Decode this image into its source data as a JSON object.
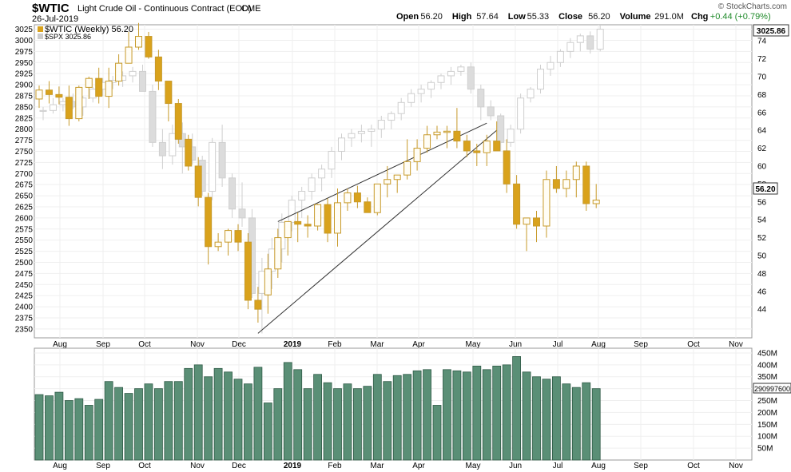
{
  "header": {
    "symbol": "$WTIC",
    "name": "Light Crude Oil - Continuous Contract (EOD)",
    "exchange": "CME",
    "date": "26-Jul-2019",
    "copyright": "© StockCharts.com",
    "stats": [
      {
        "label": "Open",
        "value": "56.20"
      },
      {
        "label": "High",
        "value": "57.64"
      },
      {
        "label": "Low",
        "value": "55.33"
      },
      {
        "label": "Close",
        "value": "56.20"
      },
      {
        "label": "Volume",
        "value": "291.0M"
      },
      {
        "label": "Chg",
        "value": "+0.44 (+0.79%)",
        "color": "#1f8a2a"
      }
    ]
  },
  "legend": {
    "wtic": "$WTIC (Weekly) 56.20",
    "spx": "$SPX 3025.86",
    "wtic_color": "#d9a21c",
    "spx_color": "#cccccc"
  },
  "price_badges": {
    "spx": "3025.86",
    "wtic": "56.20"
  },
  "colors": {
    "up": "#d9a21c",
    "down": "#d9a21c",
    "spx": "#dcdcdc",
    "volume": "#5a8f76",
    "trend": "#333333"
  },
  "chart_data": {
    "type": "candlestick",
    "interval": "weekly",
    "x_axis_labels": [
      "Aug",
      "Sep",
      "Oct",
      "Nov",
      "Dec",
      "2019",
      "Feb",
      "Mar",
      "Apr",
      "May",
      "Jun",
      "Jul",
      "Aug",
      "Sep",
      "Oct",
      "Nov"
    ],
    "y_left": {
      "label": "$SPX",
      "range": [
        2330,
        3035
      ],
      "ticks": [
        2350,
        2375,
        2400,
        2425,
        2450,
        2475,
        2500,
        2525,
        2550,
        2575,
        2600,
        2625,
        2650,
        2675,
        2700,
        2725,
        2750,
        2775,
        2800,
        2825,
        2850,
        2875,
        2900,
        2925,
        2950,
        2975,
        3000,
        3025
      ]
    },
    "y_right": {
      "label": "$WTIC",
      "range": [
        40.8,
        75.8
      ],
      "ticks": [
        44,
        46,
        48,
        50,
        52,
        54,
        56,
        58,
        60,
        62,
        64,
        66,
        68,
        70,
        72,
        74
      ]
    },
    "wtic": [
      [
        67.5,
        69.0,
        66.5,
        68.5
      ],
      [
        68.5,
        69.5,
        67.0,
        68.0
      ],
      [
        68.0,
        68.9,
        66.9,
        67.7
      ],
      [
        67.7,
        69.0,
        64.5,
        65.3
      ],
      [
        65.3,
        69.0,
        65.0,
        68.8
      ],
      [
        68.8,
        70.0,
        67.5,
        69.8
      ],
      [
        69.8,
        71.0,
        67.0,
        67.8
      ],
      [
        67.8,
        71.0,
        66.5,
        69.5
      ],
      [
        69.5,
        72.5,
        69.0,
        71.5
      ],
      [
        71.5,
        75.0,
        72.0,
        73.3
      ],
      [
        73.3,
        76.0,
        73.0,
        74.5
      ],
      [
        74.5,
        75.0,
        72.0,
        72.2
      ],
      [
        72.2,
        73.0,
        68.5,
        69.5
      ],
      [
        69.5,
        69.5,
        65.0,
        67.0
      ],
      [
        67.0,
        67.5,
        62.5,
        63.0
      ],
      [
        63.0,
        63.5,
        59.5,
        60.0
      ],
      [
        60.0,
        61.0,
        55.5,
        56.5
      ],
      [
        56.5,
        57.0,
        49.0,
        51.0
      ],
      [
        51.0,
        52.5,
        50.5,
        51.5
      ],
      [
        51.5,
        53.0,
        50.0,
        52.8
      ],
      [
        52.8,
        53.5,
        50.5,
        51.5
      ],
      [
        51.5,
        52.5,
        44.0,
        45.0
      ],
      [
        45.0,
        46.5,
        42.5,
        44.0
      ],
      [
        45.6,
        50.2,
        43.5,
        48.5
      ],
      [
        48.5,
        53.0,
        47.5,
        52.0
      ],
      [
        52.0,
        53.5,
        50.0,
        53.8
      ],
      [
        53.8,
        54.8,
        51.5,
        53.5
      ],
      [
        53.5,
        54.5,
        52.0,
        53.3
      ],
      [
        53.3,
        55.8,
        52.8,
        55.7
      ],
      [
        55.7,
        56.4,
        51.5,
        52.5
      ],
      [
        52.5,
        57.5,
        51.0,
        55.9
      ],
      [
        55.9,
        57.5,
        55.0,
        57.0
      ],
      [
        57.0,
        57.8,
        55.3,
        56.0
      ],
      [
        56.0,
        56.5,
        54.8,
        54.8
      ],
      [
        54.8,
        57.8,
        54.5,
        58.0
      ],
      [
        58.0,
        60.0,
        56.5,
        58.5
      ],
      [
        58.5,
        59.0,
        57.0,
        59.0
      ],
      [
        59.0,
        63.0,
        58.5,
        60.5
      ],
      [
        60.5,
        63.0,
        59.5,
        62.0
      ],
      [
        62.0,
        64.5,
        61.5,
        63.5
      ],
      [
        63.5,
        64.5,
        63.0,
        63.8
      ],
      [
        63.8,
        64.5,
        62.0,
        63.9
      ],
      [
        63.9,
        66.5,
        62.0,
        62.8
      ],
      [
        62.8,
        63.5,
        61.0,
        61.7
      ],
      [
        61.7,
        62.5,
        60.0,
        61.5
      ],
      [
        61.5,
        63.5,
        60.0,
        62.8
      ],
      [
        62.8,
        65.0,
        62.5,
        61.7
      ],
      [
        61.7,
        63.0,
        57.0,
        58.0
      ],
      [
        58.0,
        59.0,
        53.0,
        53.5
      ],
      [
        53.5,
        54.0,
        50.5,
        54.2
      ],
      [
        54.2,
        55.0,
        51.5,
        53.3
      ],
      [
        53.3,
        59.5,
        52.0,
        58.5
      ],
      [
        58.5,
        60.0,
        57.0,
        57.5
      ],
      [
        57.5,
        59.5,
        56.5,
        58.5
      ],
      [
        58.5,
        60.5,
        56.5,
        60.0
      ],
      [
        60.0,
        60.5,
        55.0,
        55.8
      ],
      [
        55.8,
        58.0,
        55.3,
        56.2
      ]
    ],
    "spx": [
      [
        2840,
        2850,
        2820,
        2842
      ],
      [
        2842,
        2870,
        2835,
        2855
      ],
      [
        2855,
        2870,
        2840,
        2862
      ],
      [
        2862,
        2880,
        2845,
        2850
      ],
      [
        2850,
        2875,
        2830,
        2870
      ],
      [
        2870,
        2895,
        2860,
        2890
      ],
      [
        2890,
        2915,
        2875,
        2905
      ],
      [
        2905,
        2920,
        2890,
        2910
      ],
      [
        2910,
        2930,
        2895,
        2920
      ],
      [
        2920,
        2940,
        2905,
        2930
      ],
      [
        2930,
        2945,
        2890,
        2885
      ],
      [
        2885,
        2900,
        2760,
        2770
      ],
      [
        2770,
        2800,
        2710,
        2740
      ],
      [
        2740,
        2810,
        2720,
        2790
      ],
      [
        2790,
        2815,
        2700,
        2760
      ],
      [
        2760,
        2790,
        2720,
        2730
      ],
      [
        2730,
        2740,
        2650,
        2660
      ],
      [
        2660,
        2780,
        2640,
        2770
      ],
      [
        2770,
        2810,
        2670,
        2690
      ],
      [
        2690,
        2700,
        2600,
        2620
      ],
      [
        2620,
        2680,
        2580,
        2600
      ],
      [
        2600,
        2620,
        2420,
        2430
      ],
      [
        2430,
        2510,
        2340,
        2480
      ],
      [
        2480,
        2555,
        2440,
        2530
      ],
      [
        2530,
        2610,
        2500,
        2590
      ],
      [
        2590,
        2650,
        2570,
        2640
      ],
      [
        2640,
        2670,
        2600,
        2660
      ],
      [
        2660,
        2700,
        2640,
        2690
      ],
      [
        2690,
        2720,
        2660,
        2710
      ],
      [
        2710,
        2760,
        2690,
        2750
      ],
      [
        2750,
        2790,
        2730,
        2780
      ],
      [
        2780,
        2800,
        2760,
        2790
      ],
      [
        2790,
        2810,
        2770,
        2795
      ],
      [
        2795,
        2810,
        2760,
        2800
      ],
      [
        2800,
        2830,
        2780,
        2820
      ],
      [
        2820,
        2840,
        2800,
        2835
      ],
      [
        2835,
        2870,
        2820,
        2860
      ],
      [
        2860,
        2890,
        2850,
        2880
      ],
      [
        2880,
        2900,
        2860,
        2890
      ],
      [
        2890,
        2910,
        2870,
        2905
      ],
      [
        2905,
        2925,
        2890,
        2920
      ],
      [
        2920,
        2940,
        2900,
        2930
      ],
      [
        2930,
        2945,
        2920,
        2940
      ],
      [
        2940,
        2950,
        2880,
        2890
      ],
      [
        2890,
        2900,
        2820,
        2850
      ],
      [
        2850,
        2865,
        2820,
        2830
      ],
      [
        2830,
        2835,
        2750,
        2770
      ],
      [
        2770,
        2810,
        2760,
        2800
      ],
      [
        2800,
        2880,
        2790,
        2870
      ],
      [
        2870,
        2895,
        2860,
        2890
      ],
      [
        2890,
        2945,
        2880,
        2935
      ],
      [
        2935,
        2965,
        2920,
        2950
      ],
      [
        2950,
        2980,
        2940,
        2975
      ],
      [
        2975,
        3005,
        2960,
        2995
      ],
      [
        2995,
        3015,
        2975,
        3010
      ],
      [
        3010,
        3020,
        2970,
        2980
      ],
      [
        2980,
        3035,
        2975,
        3025
      ]
    ],
    "volume_millions": [
      275,
      270,
      285,
      250,
      258,
      230,
      255,
      330,
      305,
      280,
      300,
      320,
      300,
      330,
      330,
      385,
      400,
      350,
      385,
      370,
      340,
      320,
      390,
      240,
      300,
      410,
      380,
      300,
      360,
      325,
      300,
      320,
      300,
      310,
      360,
      330,
      355,
      360,
      375,
      380,
      230,
      380,
      375,
      370,
      395,
      380,
      395,
      400,
      435,
      370,
      350,
      340,
      350,
      320,
      305,
      325,
      300
    ],
    "volume_axis": [
      "450M",
      "400M",
      "350M",
      "300M",
      "250M",
      "200M",
      "150M",
      "100M",
      "50M"
    ],
    "volume_badge": "290997600",
    "trendlines_wtic_index": [
      {
        "from": [
          24,
          53.8
        ],
        "to": [
          45,
          64.8
        ]
      },
      {
        "from": [
          22,
          41.3
        ],
        "to": [
          46,
          64.0
        ]
      }
    ]
  }
}
